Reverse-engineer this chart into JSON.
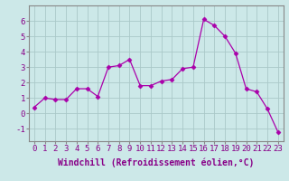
{
  "x": [
    0,
    1,
    2,
    3,
    4,
    5,
    6,
    7,
    8,
    9,
    10,
    11,
    12,
    13,
    14,
    15,
    16,
    17,
    18,
    19,
    20,
    21,
    22,
    23
  ],
  "y": [
    0.4,
    1.0,
    0.9,
    0.9,
    1.6,
    1.6,
    1.1,
    3.0,
    3.1,
    3.5,
    1.8,
    1.8,
    2.1,
    2.2,
    2.9,
    3.0,
    6.1,
    5.7,
    5.0,
    3.9,
    1.6,
    1.4,
    0.3,
    -1.2
  ],
  "line_color": "#aa00aa",
  "marker": "D",
  "marker_size": 2.5,
  "bg_color": "#cce8e8",
  "grid_color": "#aac8c8",
  "xlabel": "Windchill (Refroidissement éolien,°C)",
  "xlabel_fontsize": 7,
  "ylabel_ticks": [
    -1,
    0,
    1,
    2,
    3,
    4,
    5,
    6
  ],
  "xtick_labels": [
    "0",
    "1",
    "2",
    "3",
    "4",
    "5",
    "6",
    "7",
    "8",
    "9",
    "10",
    "11",
    "12",
    "13",
    "14",
    "15",
    "16",
    "17",
    "18",
    "19",
    "20",
    "21",
    "22",
    "23"
  ],
  "ylim": [
    -1.8,
    7.0
  ],
  "xlim": [
    -0.5,
    23.5
  ],
  "tick_fontsize": 6.5,
  "spine_color": "#888888"
}
